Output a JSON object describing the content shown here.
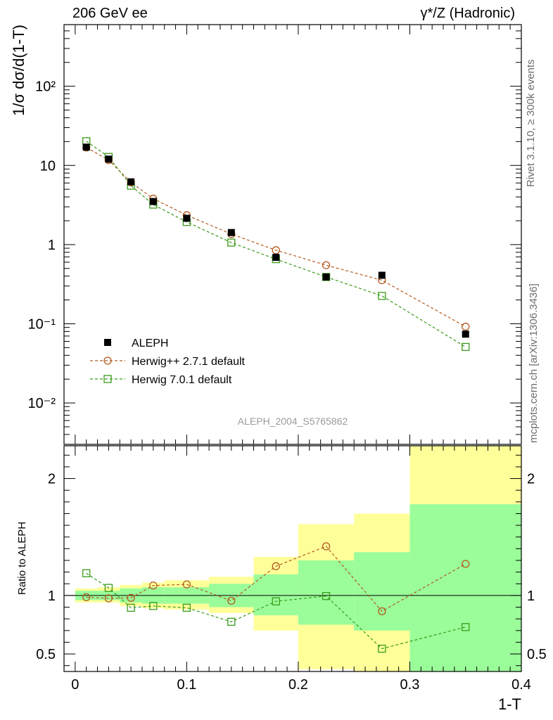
{
  "header": {
    "title_left": "206 GeV ee",
    "title_right": "γ*/Z (Hadronic)"
  },
  "side_labels": {
    "rivet": "Rivet 3.1.10, ≥ 300k events",
    "mcplots": "mcplots.cern.ch [arXiv:1306.3436]"
  },
  "watermark": "ALEPH_2004_S5765862",
  "colors": {
    "data": "#000000",
    "herwigpp": "#b35a1f",
    "herwig7": "#3a9a1a",
    "band_outer": "#ffff9a",
    "band_inner": "#9afd9a"
  },
  "chart_data": [
    {
      "type": "scatter",
      "panel": "main",
      "ylabel": "1/σ  dσ/d(1-T)",
      "yscale": "log",
      "ylim": [
        0.003,
        600
      ],
      "xlim": [
        -0.01,
        0.4
      ],
      "ytick_labels": [
        "10⁻²",
        "10⁻¹",
        "1",
        "10",
        "10²"
      ],
      "legend_position": "lower-left",
      "series": [
        {
          "name": "ALEPH",
          "style": "filled-square",
          "x": [
            0.01,
            0.03,
            0.05,
            0.07,
            0.1,
            0.14,
            0.18,
            0.225,
            0.275,
            0.35
          ],
          "y": [
            17.0,
            12.0,
            6.2,
            3.5,
            2.15,
            1.42,
            0.69,
            0.39,
            0.41,
            0.074
          ]
        },
        {
          "name": "Herwig++ 2.7.1 default",
          "style": "open-circle-dashed",
          "x": [
            0.01,
            0.03,
            0.05,
            0.07,
            0.1,
            0.14,
            0.18,
            0.225,
            0.275,
            0.35
          ],
          "y": [
            16.8,
            11.7,
            6.1,
            3.8,
            2.35,
            1.36,
            0.85,
            0.55,
            0.355,
            0.092
          ]
        },
        {
          "name": "Herwig 7.0.1 default",
          "style": "open-square-dashed",
          "x": [
            0.01,
            0.03,
            0.05,
            0.07,
            0.1,
            0.14,
            0.18,
            0.225,
            0.275,
            0.35
          ],
          "y": [
            20.2,
            12.8,
            5.55,
            3.2,
            1.93,
            1.06,
            0.655,
            0.39,
            0.225,
            0.051
          ]
        }
      ]
    },
    {
      "type": "line",
      "panel": "ratio",
      "xlabel": "1-T",
      "ylabel": "Ratio to ALEPH",
      "ylim": [
        0.35,
        2.28
      ],
      "xlim": [
        -0.01,
        0.4
      ],
      "xtick_labels": [
        "0",
        "0.1",
        "0.2",
        "0.3",
        "0.4"
      ],
      "ytick_labels": [
        "0.5",
        "1",
        "2"
      ],
      "bands": {
        "bin_edges": [
          0.0,
          0.02,
          0.04,
          0.06,
          0.08,
          0.12,
          0.16,
          0.2,
          0.25,
          0.3,
          0.4
        ],
        "inner_low": [
          0.96,
          0.96,
          0.94,
          0.93,
          0.93,
          0.9,
          0.83,
          0.75,
          0.7,
          0.35
        ],
        "inner_high": [
          1.04,
          1.04,
          1.06,
          1.07,
          1.07,
          1.1,
          1.18,
          1.3,
          1.37,
          1.78
        ],
        "outer_low": [
          0.94,
          0.94,
          0.91,
          0.89,
          0.88,
          0.85,
          0.7,
          0.37,
          0.35,
          0.35
        ],
        "outer_high": [
          1.06,
          1.07,
          1.09,
          1.11,
          1.13,
          1.16,
          1.33,
          1.61,
          1.7,
          2.28
        ]
      },
      "series": [
        {
          "name": "Herwig++ 2.7.1 default",
          "style": "open-circle-dashed",
          "x": [
            0.01,
            0.03,
            0.05,
            0.07,
            0.1,
            0.14,
            0.18,
            0.225,
            0.275,
            0.35
          ],
          "y": [
            0.985,
            0.975,
            0.98,
            1.085,
            1.095,
            0.955,
            1.25,
            1.42,
            0.865,
            1.27
          ]
        },
        {
          "name": "Herwig 7.0.1 default",
          "style": "open-square-dashed",
          "x": [
            0.01,
            0.03,
            0.05,
            0.07,
            0.1,
            0.14,
            0.18,
            0.225,
            0.275,
            0.35
          ],
          "y": [
            1.19,
            1.065,
            0.895,
            0.91,
            0.895,
            0.775,
            0.95,
            0.995,
            0.545,
            0.73
          ]
        }
      ]
    }
  ]
}
